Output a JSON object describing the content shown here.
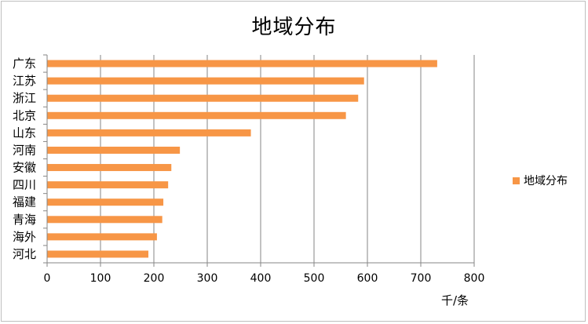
{
  "chart_data": {
    "type": "bar",
    "orientation": "horizontal",
    "title": "地域分布",
    "xlabel": "千/条",
    "ylabel": "",
    "xlim": [
      0,
      800
    ],
    "x_ticks": [
      "0",
      "100",
      "200",
      "300",
      "400",
      "500",
      "600",
      "700",
      "800"
    ],
    "categories": [
      "广东",
      "江苏",
      "浙江",
      "北京",
      "山东",
      "河南",
      "安徽",
      "四川",
      "福建",
      "青海",
      "海外",
      "河北"
    ],
    "series": [
      {
        "name": "地域分布",
        "color": "#f79646",
        "values": [
          730,
          593,
          582,
          559,
          381,
          248,
          232,
          226,
          217,
          215,
          205,
          189
        ]
      }
    ],
    "grid": true,
    "legend_position": "right"
  }
}
